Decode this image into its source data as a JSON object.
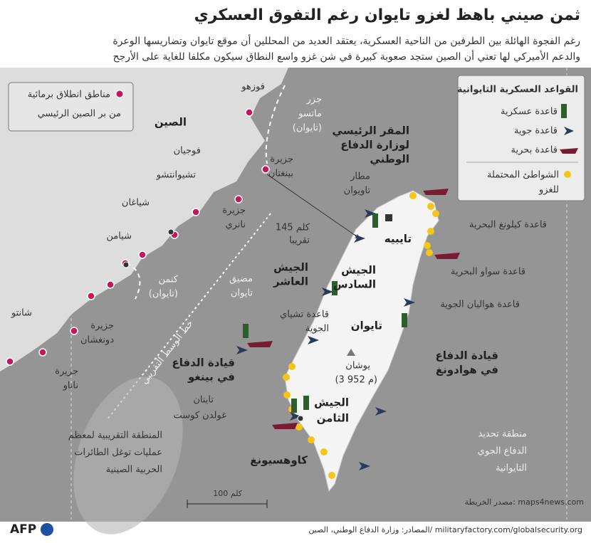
{
  "header": {
    "title": "ثمن صيني باهظ لغزو تايوان رغم التفوق العسكري",
    "subtitle": [
      "رغم الفجوة الهائلة بين الطرفين من الناحية العسكرية، يعتقد العديد من المحللين أن موقع تايوان وتضاريسها الوعرة",
      "والدعم الأميركي لها تعني أن الصين ستجد صعوبة كبيرة في شن غزو واسع النطاق سيكون مكلفا للغاية على الأرجح"
    ]
  },
  "legend_left": [
    "مناطق انطلاق برمائية",
    "من بر الصين الرئيسي"
  ],
  "legend_right": {
    "title": "القواعد العسكرية التايوانية",
    "items": [
      "قاعدة عسكرية",
      "قاعدة جوية",
      "قاعدة بحرية"
    ],
    "beaches": [
      "الشواطئ المحتملة",
      "للغزو"
    ]
  },
  "labels": {
    "china": "الصين",
    "fujian": "فوجيان",
    "fuzhou": "فوزهو",
    "matsu": [
      "جزر",
      "ماتسو",
      "(تايوان)"
    ],
    "pingtan": [
      "جزيرة",
      "بينغتان"
    ],
    "quanzhou": "تشيوانتشو",
    "xiagang": "شياغان",
    "xiamen": "شيامن",
    "nanri": [
      "جزيرة",
      "نانري"
    ],
    "kinmen": [
      "كنمن",
      "(تايوان)"
    ],
    "shantou": "شانتو",
    "dongshan": [
      "جزيرة",
      "دونغشان"
    ],
    "nanao": [
      "جزيرة",
      "ناناو"
    ],
    "median": "خط الوسط التقريبي",
    "strait": [
      "مضيق",
      "تايوان"
    ],
    "distance": [
      "145 كلم",
      "تقريبا"
    ],
    "mnd": [
      "المقر الرئيسي",
      "لوزارة الدفاع",
      "الوطني"
    ],
    "taoyuan": [
      "مطار",
      "تاويوان"
    ],
    "taipei": "تايبيه",
    "keelung": "قاعدة كيلونغ البحرية",
    "army10": [
      "الجيش",
      "العاشر"
    ],
    "army6": [
      "الجيش",
      "السادس"
    ],
    "suao": "قاعدة سواو البحرية",
    "hualien": "قاعدة هواليان الجوية",
    "chiayi": [
      "قاعدة تشياي",
      "الجوية"
    ],
    "taiwan": "تايوان",
    "huadong": [
      "قيادة الدفاع",
      "في هوادونغ"
    ],
    "pingtung": [
      "قيادة الدفاع",
      "في بينغو"
    ],
    "yushan": [
      "يوشان",
      "(3 952 م)"
    ],
    "army8": [
      "الجيش",
      "الثامن"
    ],
    "tainan": [
      "تاينان",
      "غولدن كوست"
    ],
    "kaohsiung": "كاوهسيونغ",
    "incursion": [
      "المنطقة التقريبية لمعظم",
      "عمليات توغل الطائرات",
      "الحربية الصينية"
    ],
    "adiz": [
      "منطقة تحديد",
      "الدفاع الجوي",
      "التايوانية"
    ],
    "scale": "100 كلم",
    "map_source": "مصدر الخريطة: maps4news.com"
  },
  "footer": {
    "logo": "AFP",
    "sources": "المصادر: وزارة الدفاع الوطني، الصين/ militaryfactory.com/globalsecurity.org"
  }
}
